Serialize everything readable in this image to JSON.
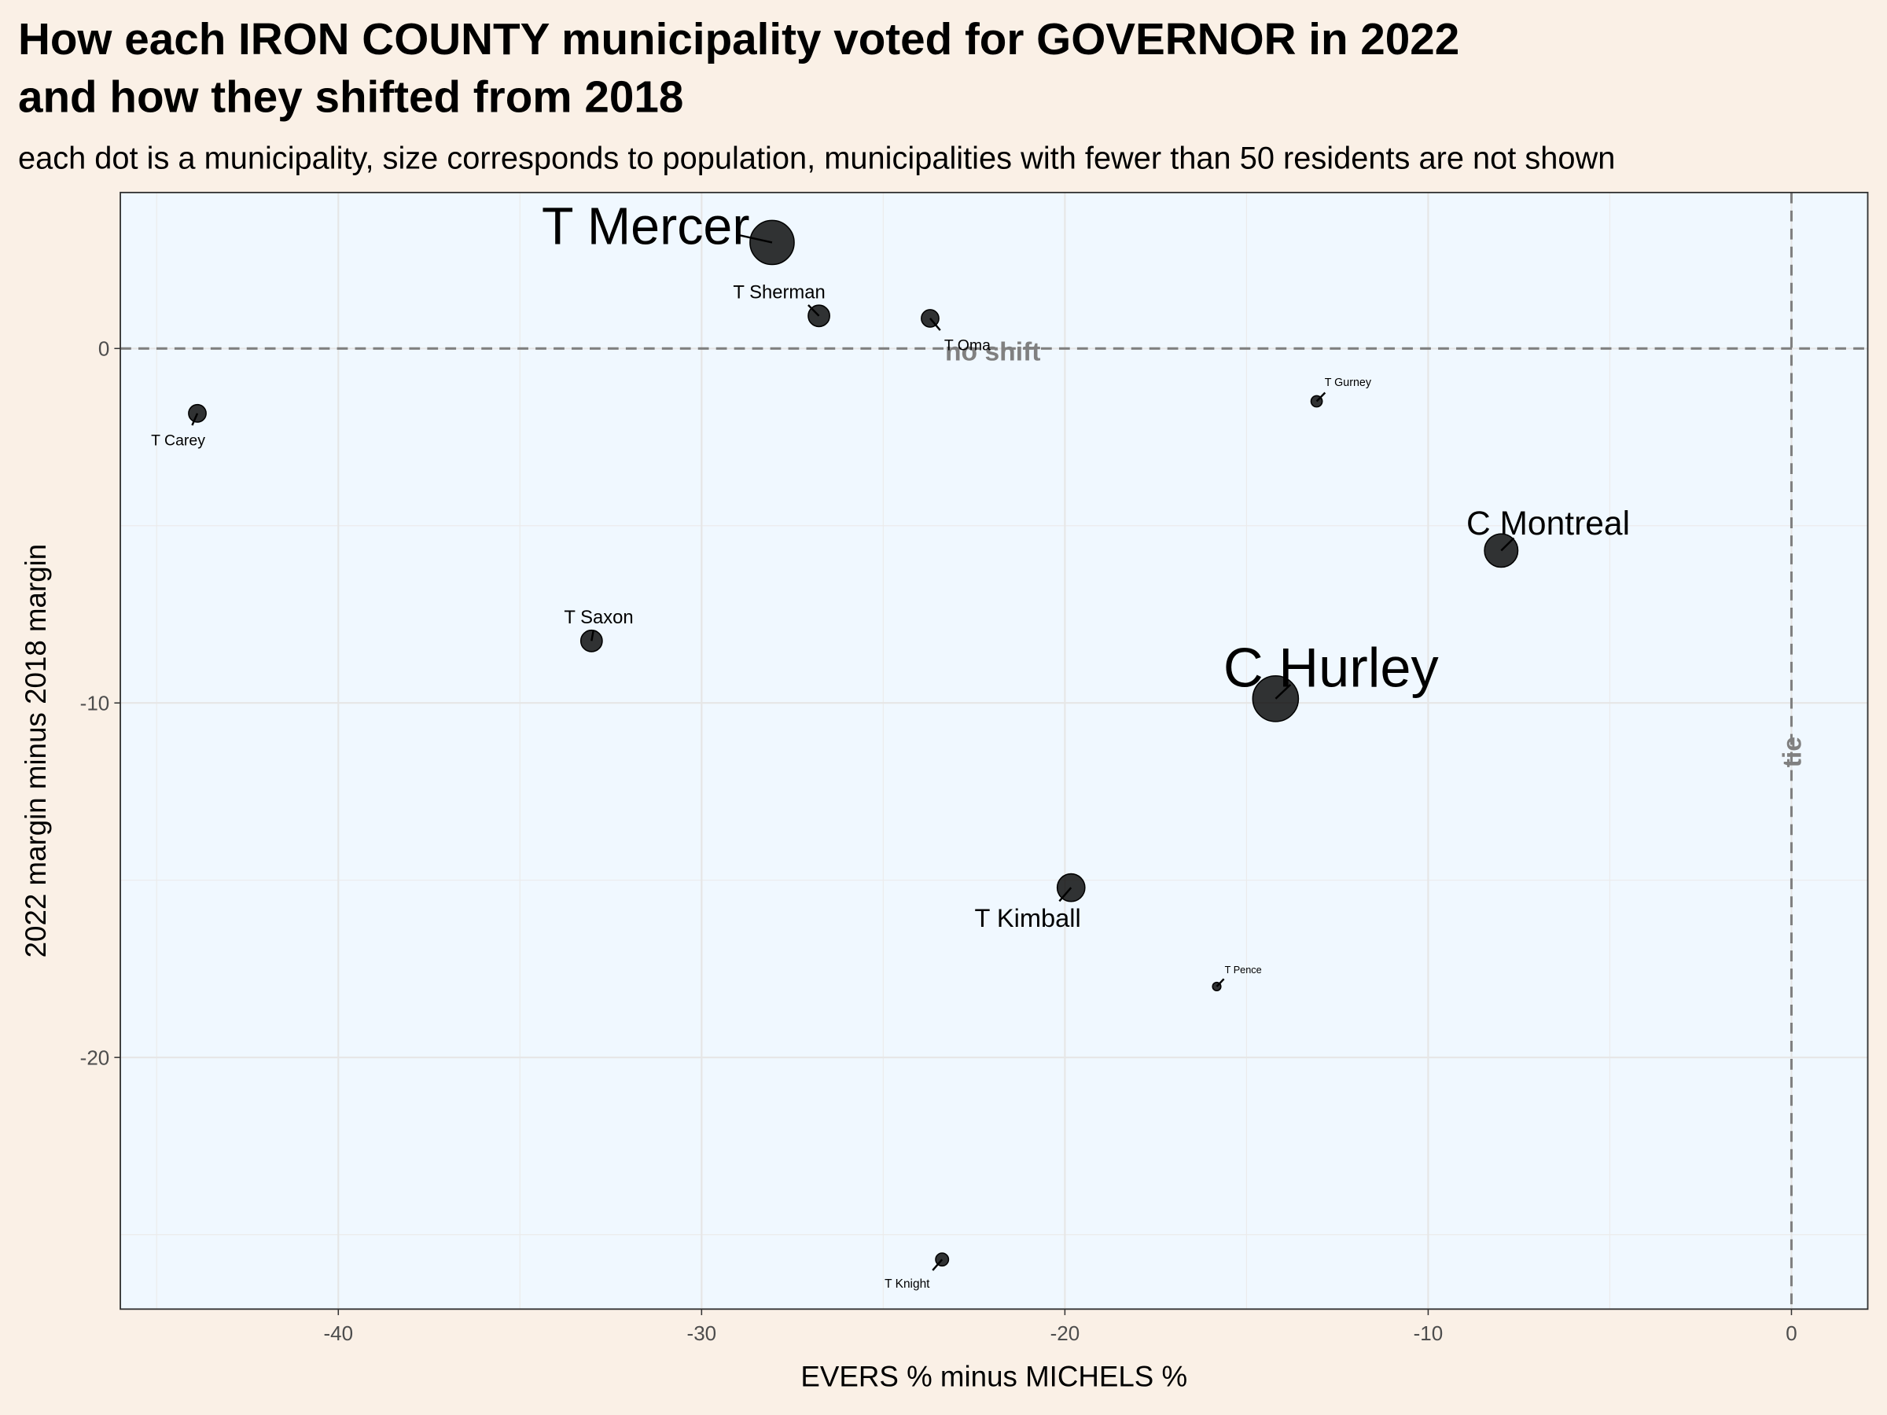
{
  "chart_data": {
    "type": "scatter",
    "title": "How each IRON COUNTY municipality voted for GOVERNOR in 2022",
    "title_line2": "and how they shifted from 2018",
    "subtitle": "each dot is a municipality, size corresponds to population, municipalities with fewer than 50 residents are not shown",
    "x_label": "EVERS % minus MICHELS %",
    "y_label": "2022 margin minus 2018 margin",
    "labels": [
      "T Mercer",
      "T Sherman",
      "T Oma",
      "T Carey",
      "T Gurney",
      "C Montreal",
      "T Saxon",
      "C Hurley",
      "T Kimball",
      "T Pence",
      "T Knight"
    ],
    "x": [
      -28.06,
      -26.77,
      -23.71,
      -43.88,
      -13.07,
      -7.99,
      -33.03,
      -14.2,
      -19.83,
      -15.82,
      -23.38
    ],
    "y": [
      2.99,
      0.92,
      0.85,
      -1.83,
      -1.49,
      -5.7,
      -8.25,
      -9.88,
      -15.21,
      -18.0,
      -25.7
    ],
    "sizes": [
      1400,
      330,
      220,
      220,
      90,
      800,
      330,
      1500,
      550,
      50,
      120
    ],
    "color": "#000000",
    "xlim": [
      -46,
      2.1
    ],
    "ylim": [
      -27.1,
      4.4
    ],
    "xticks": [
      -40,
      -30,
      -20,
      -10,
      0
    ],
    "yticks": [
      0,
      -10,
      -20
    ],
    "hline": {
      "value": 0,
      "label": "no shift"
    },
    "vline": {
      "value": 0,
      "label": "tie"
    },
    "grid": true
  }
}
